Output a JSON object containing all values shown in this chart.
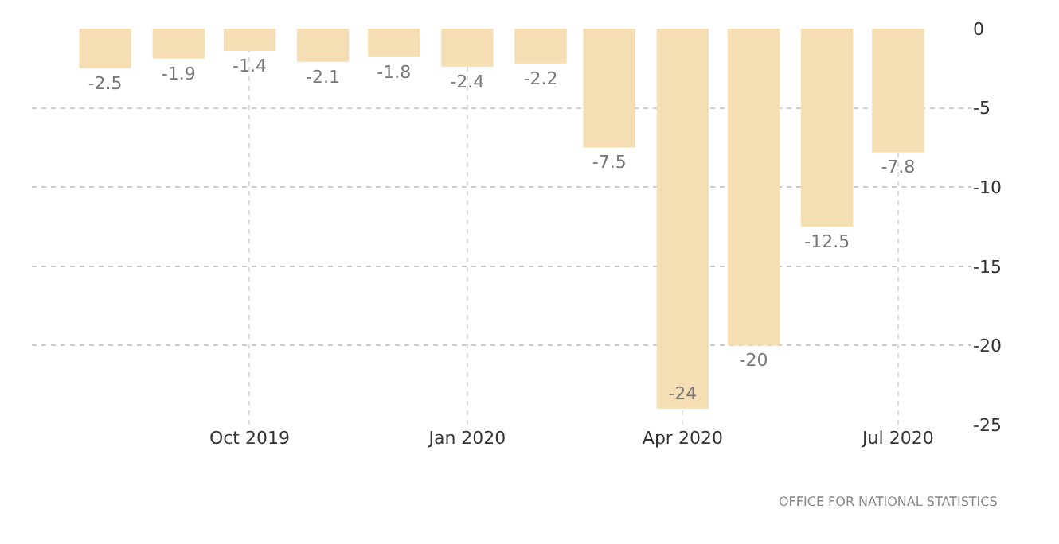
{
  "chart_data": {
    "type": "bar",
    "x": [
      "2019-08",
      "2019-09",
      "2019-10",
      "2019-11",
      "2019-12",
      "2020-01",
      "2020-02",
      "2020-03",
      "2020-04",
      "2020-05",
      "2020-06",
      "2020-07"
    ],
    "values": [
      -2.5,
      -1.9,
      -1.4,
      -2.1,
      -1.8,
      -2.4,
      -2.2,
      -7.5,
      -24,
      -20,
      -12.5,
      -7.8
    ],
    "color": "#f5deb3",
    "data_labels": true,
    "xlim": [
      "2019-07-01",
      "2020-08-01"
    ],
    "xticks": [
      {
        "value": "2019-10-01",
        "label": "Oct 2019"
      },
      {
        "value": "2020-01-01",
        "label": "Jan 2020"
      },
      {
        "value": "2020-04-01",
        "label": "Apr 2020"
      },
      {
        "value": "2020-07-01",
        "label": "Jul 2020"
      }
    ],
    "ylim": [
      -25,
      0
    ],
    "yticks": [
      0,
      -5,
      -10,
      -15,
      -20,
      -25
    ],
    "grid": true,
    "annotations": [
      "OFFICE FOR NATIONAL STATISTICS"
    ]
  }
}
